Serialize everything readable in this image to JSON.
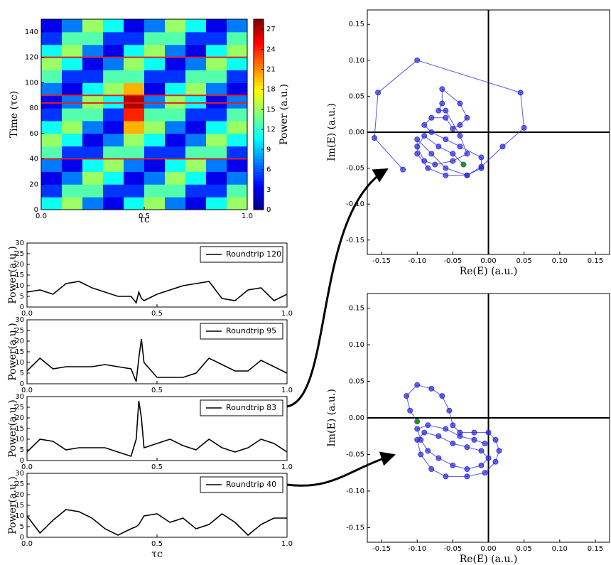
{
  "chart_data": [
    {
      "type": "heatmap",
      "xlabel": "τc",
      "ylabel": "Time (τc)",
      "colorbar_label": "Power (a.u.)",
      "colormap": "jet",
      "xlim": [
        0,
        1
      ],
      "ylim": [
        0,
        150
      ],
      "xticks": [
        {
          "value": 0,
          "label": "0.0"
        },
        0.5,
        {
          "value": 1,
          "label": "1.0"
        }
      ],
      "yticks": [
        0,
        20,
        40,
        60,
        80,
        100,
        120,
        140
      ],
      "zlim": [
        0,
        28.5
      ],
      "zticks": [
        0,
        3,
        6,
        9,
        12,
        15,
        18,
        21,
        24,
        27
      ],
      "hlines": [
        40,
        84,
        90,
        120
      ],
      "hline_color": "#e02020",
      "z": [
        [
          11,
          15,
          7,
          3,
          11,
          15,
          7,
          3,
          11,
          15
        ],
        [
          5,
          13,
          13,
          5,
          5,
          13,
          13,
          5,
          5,
          13
        ],
        [
          3,
          7,
          15,
          11,
          3,
          7,
          15,
          11,
          3,
          7
        ],
        [
          7,
          3,
          11,
          15,
          7,
          3,
          11,
          15,
          7,
          3
        ],
        [
          13,
          5,
          5,
          13,
          13,
          5,
          5,
          13,
          13,
          5
        ],
        [
          15,
          11,
          3,
          7,
          15,
          11,
          3,
          7,
          15,
          11
        ],
        [
          11,
          15,
          7,
          3,
          20,
          15,
          7,
          3,
          11,
          15
        ],
        [
          5,
          13,
          13,
          5,
          24,
          13,
          13,
          5,
          5,
          13
        ],
        [
          3,
          7,
          15,
          11,
          27,
          7,
          15,
          11,
          3,
          7
        ],
        [
          7,
          3,
          11,
          15,
          20,
          3,
          11,
          15,
          7,
          3
        ],
        [
          13,
          5,
          5,
          13,
          13,
          5,
          5,
          13,
          13,
          5
        ],
        [
          15,
          11,
          3,
          7,
          15,
          11,
          3,
          7,
          15,
          11
        ],
        [
          11,
          15,
          7,
          3,
          11,
          15,
          7,
          3,
          11,
          15
        ],
        [
          5,
          13,
          13,
          5,
          5,
          13,
          13,
          5,
          5,
          13
        ],
        [
          3,
          7,
          15,
          11,
          3,
          7,
          15,
          11,
          3,
          7
        ]
      ]
    },
    {
      "type": "line",
      "ylabel": "Power(a.u.)",
      "legend": "upper right",
      "xlim": [
        0,
        1
      ],
      "ylim": [
        0,
        30
      ],
      "xticks": [
        {
          "value": 0,
          "label": "0.0"
        },
        0.5,
        {
          "value": 1,
          "label": "1.0"
        }
      ],
      "yticks": [
        0,
        5,
        10,
        15,
        20,
        25,
        30
      ],
      "x": [
        0,
        0.05,
        0.1,
        0.15,
        0.2,
        0.25,
        0.3,
        0.35,
        0.4,
        0.42,
        0.43,
        0.44,
        0.45,
        0.5,
        0.55,
        0.6,
        0.65,
        0.7,
        0.75,
        0.8,
        0.85,
        0.9,
        0.95,
        1
      ],
      "series": [
        {
          "name": "Roundtrip 120",
          "color": "#000000",
          "values": [
            7,
            8,
            6,
            11,
            12,
            9,
            7,
            5,
            5,
            2,
            7,
            4,
            3,
            6,
            8,
            10,
            11,
            12,
            4,
            3,
            8,
            9,
            3,
            6
          ]
        }
      ]
    },
    {
      "type": "line",
      "ylabel": "Power(a.u.)",
      "legend": "upper right",
      "xlim": [
        0,
        1
      ],
      "ylim": [
        0,
        30
      ],
      "xticks": [
        {
          "value": 0,
          "label": "0.0"
        },
        0.5,
        {
          "value": 1,
          "label": "1.0"
        }
      ],
      "yticks": [
        0,
        5,
        10,
        15,
        20,
        25,
        30
      ],
      "x": [
        0,
        0.05,
        0.1,
        0.15,
        0.2,
        0.25,
        0.3,
        0.35,
        0.4,
        0.42,
        0.43,
        0.44,
        0.45,
        0.5,
        0.55,
        0.6,
        0.65,
        0.7,
        0.75,
        0.8,
        0.85,
        0.9,
        0.95,
        1
      ],
      "series": [
        {
          "name": "Roundtrip 95",
          "color": "#000000",
          "values": [
            6,
            12,
            7,
            8,
            8,
            8,
            9,
            8,
            7,
            1,
            12,
            21,
            10,
            3,
            3,
            3,
            5,
            12,
            9,
            6,
            6,
            11,
            8,
            5
          ]
        }
      ]
    },
    {
      "type": "line",
      "ylabel": "Power(a.u.)",
      "legend": "upper right",
      "xlim": [
        0,
        1
      ],
      "ylim": [
        0,
        30
      ],
      "xticks": [
        {
          "value": 0,
          "label": "0.0"
        },
        0.5,
        {
          "value": 1,
          "label": "1.0"
        }
      ],
      "yticks": [
        0,
        5,
        10,
        15,
        20,
        25,
        30
      ],
      "x": [
        0,
        0.05,
        0.1,
        0.15,
        0.2,
        0.25,
        0.3,
        0.35,
        0.4,
        0.42,
        0.43,
        0.44,
        0.45,
        0.5,
        0.55,
        0.6,
        0.65,
        0.7,
        0.75,
        0.8,
        0.85,
        0.9,
        0.95,
        1
      ],
      "series": [
        {
          "name": "Roundtrip 83",
          "color": "#000000",
          "values": [
            4,
            10,
            9,
            5,
            6,
            6,
            6,
            4,
            2,
            10,
            28,
            20,
            6,
            8,
            10,
            7,
            5,
            10,
            6,
            4,
            6,
            10,
            8,
            4
          ]
        }
      ]
    },
    {
      "type": "line",
      "ylabel": "Power(a.u.)",
      "xlabel": "τc",
      "legend": "upper right",
      "xlim": [
        0,
        1
      ],
      "ylim": [
        0,
        30
      ],
      "xticks": [
        {
          "value": 0,
          "label": "0.0"
        },
        0.5,
        {
          "value": 1,
          "label": "1.0"
        }
      ],
      "yticks": [
        0,
        5,
        10,
        15,
        20,
        25,
        30
      ],
      "x": [
        0,
        0.05,
        0.1,
        0.15,
        0.2,
        0.25,
        0.3,
        0.35,
        0.4,
        0.42,
        0.43,
        0.44,
        0.45,
        0.5,
        0.55,
        0.6,
        0.65,
        0.7,
        0.75,
        0.8,
        0.85,
        0.9,
        0.95,
        1
      ],
      "series": [
        {
          "name": "Roundtrip 40",
          "color": "#000000",
          "values": [
            10,
            2,
            8,
            13,
            12,
            9,
            4,
            1,
            4,
            5,
            6,
            8,
            10,
            11,
            7,
            9,
            4,
            6,
            11,
            7,
            1,
            6,
            9,
            9
          ]
        }
      ]
    },
    {
      "type": "scatter",
      "xlabel": "Re(E) (a.u.)",
      "ylabel": "Im(E) (a.u.)",
      "color": "#2b2bdc",
      "connect": true,
      "axes_lines": true,
      "xlim": [
        -0.17,
        0.17
      ],
      "ylim": [
        -0.17,
        0.17
      ],
      "xticks": [
        -0.15,
        {
          "value": -0.1,
          "label": "-0.10"
        },
        -0.05,
        {
          "value": 0,
          "label": "0.00"
        },
        0.05,
        {
          "value": 0.1,
          "label": "0.10"
        },
        0.15
      ],
      "yticks": [
        -0.15,
        {
          "value": -0.1,
          "label": "-0.10"
        },
        -0.05,
        {
          "value": 0,
          "label": "0.00"
        },
        0.05,
        {
          "value": 0.1,
          "label": "0.10"
        },
        0.15
      ],
      "x": [
        -0.12,
        -0.16,
        -0.155,
        -0.1,
        0.045,
        0.05,
        0.02,
        -0.01,
        -0.03,
        -0.06,
        -0.08,
        -0.1,
        -0.1,
        -0.085,
        -0.06,
        -0.03,
        -0.01,
        -0.01,
        -0.04,
        -0.06,
        -0.08,
        -0.09,
        -0.08,
        -0.06,
        -0.05,
        -0.04,
        -0.03,
        -0.04,
        -0.065,
        -0.065,
        -0.07,
        -0.06,
        -0.04,
        -0.03,
        -0.05,
        -0.075,
        -0.09,
        -0.1,
        -0.09,
        -0.07,
        -0.05,
        -0.035
      ],
      "y": [
        -0.052,
        -0.008,
        0.055,
        0.1,
        0.055,
        0.006,
        -0.02,
        -0.048,
        -0.06,
        -0.05,
        -0.03,
        -0.01,
        -0.03,
        -0.05,
        -0.06,
        -0.06,
        -0.05,
        -0.035,
        -0.02,
        -0.01,
        0,
        0.01,
        0.02,
        0.02,
        0.005,
        0.01,
        0.02,
        0.04,
        0.06,
        0.04,
        0.03,
        0.03,
        -0.005,
        -0.03,
        -0.04,
        -0.045,
        -0.04,
        -0.02,
        -0.005,
        -0.02,
        -0.03,
        -0.045
      ],
      "highlight": {
        "x": -0.035,
        "y": -0.045,
        "color": "#1a9a1a"
      }
    },
    {
      "type": "scatter",
      "xlabel": "Re(E) (a.u.)",
      "ylabel": "Im(E) (a.u.)",
      "color": "#2b2bdc",
      "connect": true,
      "axes_lines": true,
      "xlim": [
        -0.17,
        0.17
      ],
      "ylim": [
        -0.17,
        0.17
      ],
      "xticks": [
        -0.15,
        {
          "value": -0.1,
          "label": "-0.10"
        },
        -0.05,
        {
          "value": 0,
          "label": "0.00"
        },
        0.05,
        {
          "value": 0.1,
          "label": "0.10"
        },
        0.15
      ],
      "yticks": [
        -0.15,
        {
          "value": -0.1,
          "label": "-0.10"
        },
        -0.05,
        {
          "value": 0,
          "label": "0.00"
        },
        0.05,
        {
          "value": 0.1,
          "label": "0.10"
        },
        0.15
      ],
      "x": [
        -0.1,
        -0.11,
        -0.115,
        -0.1,
        -0.08,
        -0.065,
        -0.055,
        -0.05,
        -0.04,
        -0.02,
        0,
        0.01,
        0.015,
        0.01,
        -0.005,
        -0.03,
        -0.06,
        -0.08,
        -0.095,
        -0.1,
        -0.09,
        -0.07,
        -0.05,
        -0.03,
        -0.01,
        0,
        -0.01,
        -0.03,
        -0.05,
        -0.07,
        -0.085,
        -0.095,
        -0.1,
        -0.085,
        -0.06,
        -0.04,
        -0.02,
        -0.005
      ],
      "y": [
        -0.005,
        0.01,
        0.03,
        0.045,
        0.04,
        0.03,
        0.01,
        -0.01,
        -0.02,
        -0.02,
        -0.02,
        -0.03,
        -0.045,
        -0.06,
        -0.075,
        -0.08,
        -0.08,
        -0.07,
        -0.05,
        -0.03,
        -0.02,
        -0.025,
        -0.035,
        -0.04,
        -0.045,
        -0.055,
        -0.065,
        -0.07,
        -0.065,
        -0.055,
        -0.045,
        -0.03,
        -0.015,
        -0.01,
        -0.015,
        -0.025,
        -0.03,
        -0.035
      ],
      "highlight": {
        "x": -0.1,
        "y": -0.005,
        "color": "#1a9a1a"
      }
    }
  ]
}
